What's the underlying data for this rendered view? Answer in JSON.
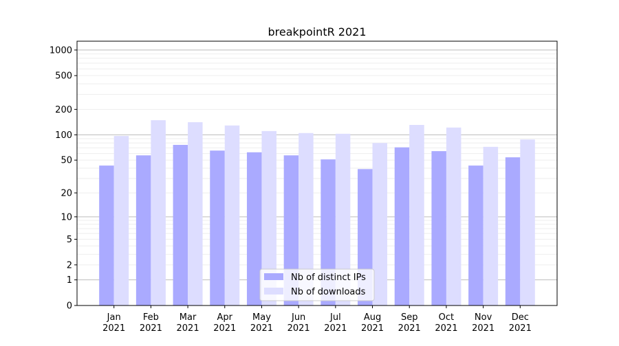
{
  "chart_data": {
    "type": "bar",
    "title": "breakpointR 2021",
    "xlabel": "",
    "ylabel": "",
    "yscale": "log(1+y)",
    "ylim": [
      0,
      1270
    ],
    "yticks": [
      0,
      1,
      2,
      5,
      10,
      20,
      50,
      100,
      200,
      500,
      1000
    ],
    "grid": true,
    "legend_position": "bottom-center",
    "categories": [
      "Jan\n2021",
      "Feb\n2021",
      "Mar\n2021",
      "Apr\n2021",
      "May\n2021",
      "Jun\n2021",
      "Jul\n2021",
      "Aug\n2021",
      "Sep\n2021",
      "Oct\n2021",
      "Nov\n2021",
      "Dec\n2021"
    ],
    "series": [
      {
        "name": "Nb of distinct IPs",
        "color": "#aaaaff",
        "values": [
          43,
          57,
          76,
          65,
          62,
          57,
          51,
          39,
          71,
          64,
          43,
          54
        ]
      },
      {
        "name": "Nb of downloads",
        "color": "#ddddff",
        "values": [
          97,
          149,
          141,
          129,
          111,
          105,
          103,
          80,
          131,
          122,
          72,
          88
        ]
      }
    ]
  }
}
